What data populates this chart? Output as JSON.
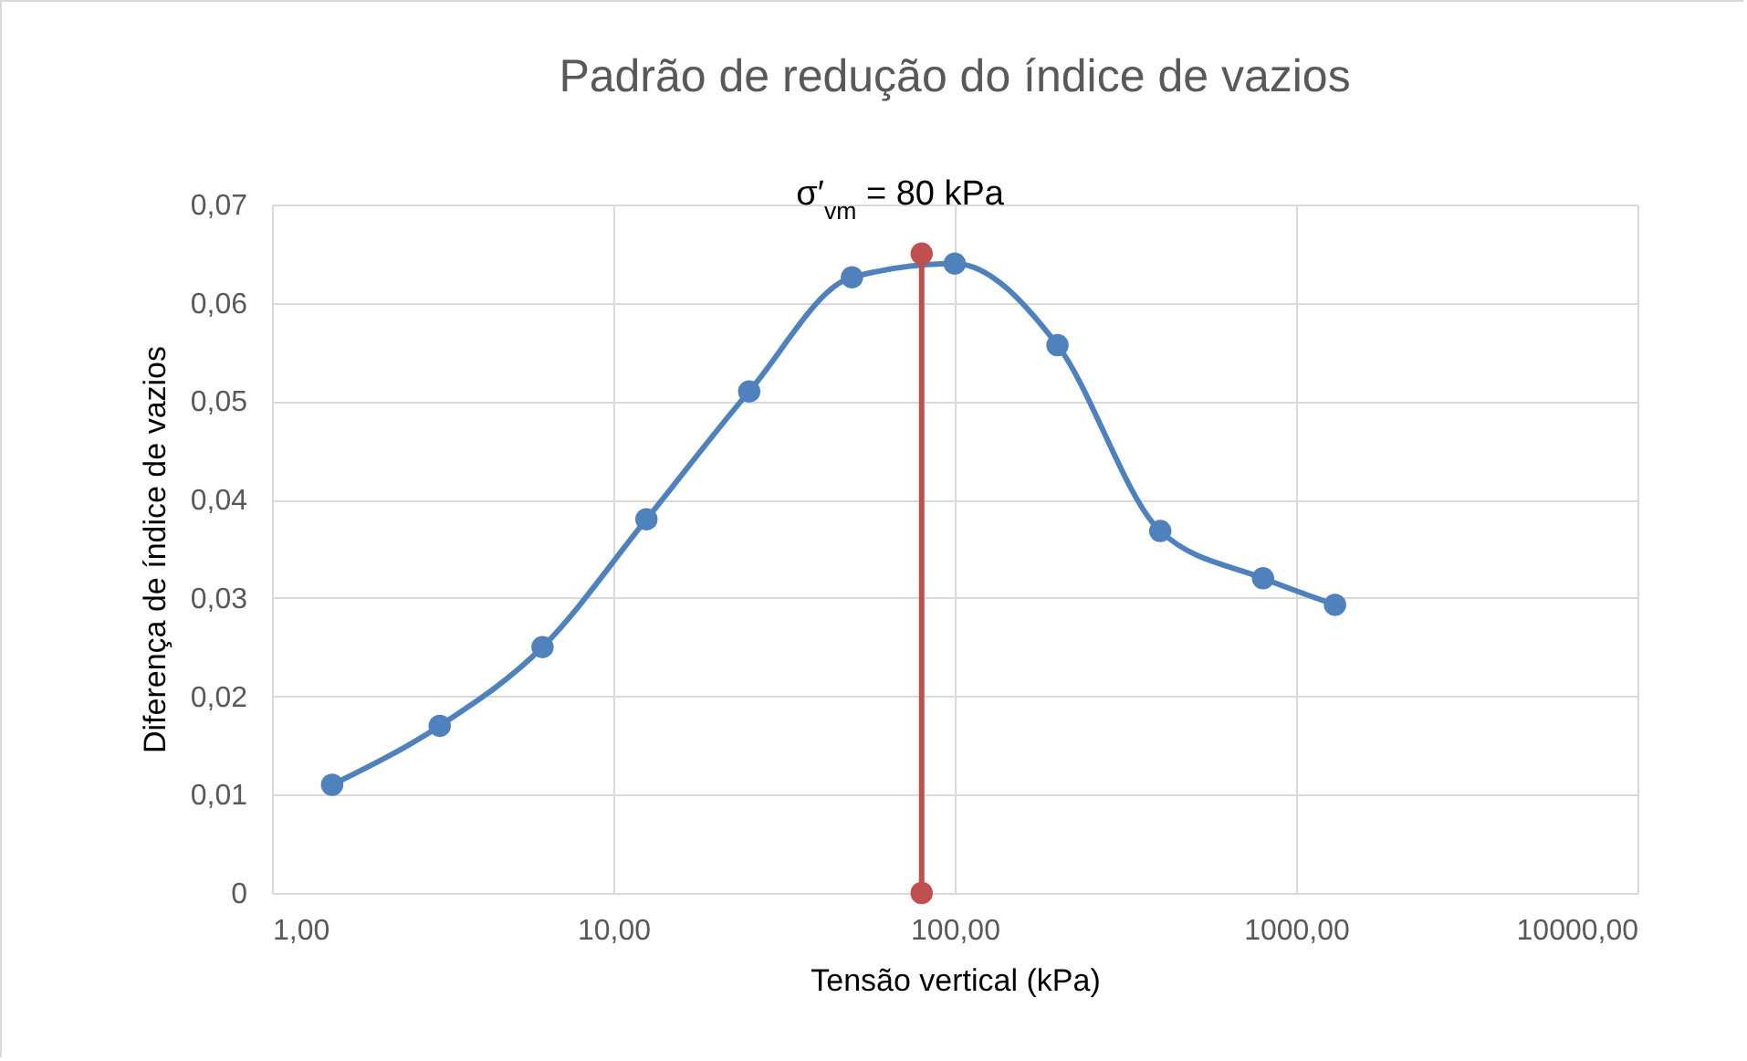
{
  "chart_data": {
    "type": "line",
    "title": "Padrão de redução do índice de vazios",
    "xlabel": "Tensão vertical (kPa)",
    "ylabel": "Diferença de índice de vazios",
    "log": "x",
    "xlim": [
      1,
      10000
    ],
    "ylim": [
      0,
      0.07
    ],
    "xticks": [
      {
        "value": 1,
        "label": "1,00"
      },
      {
        "value": 10,
        "label": "10,00"
      },
      {
        "value": 100,
        "label": "100,00"
      },
      {
        "value": 1000,
        "label": "1000,00"
      },
      {
        "value": 10000,
        "label": "10000,00"
      }
    ],
    "yticks": [
      0,
      {
        "value": 0.01,
        "label": "0,01"
      },
      {
        "value": 0.02,
        "label": "0,02"
      },
      {
        "value": 0.03,
        "label": "0,03"
      },
      {
        "value": 0.04,
        "label": "0,04"
      },
      {
        "value": 0.05,
        "label": "0,05"
      },
      {
        "value": 0.06,
        "label": "0,06"
      },
      {
        "value": 0.07,
        "label": "0,07"
      }
    ],
    "grid": true,
    "legend": false,
    "marker": "circle",
    "line_style": "solid",
    "series": [
      {
        "color": "#4f81bd",
        "x": [
          1.5,
          3.1,
          6.2,
          12.5,
          25,
          50,
          100,
          200,
          400,
          800,
          1300
        ],
        "values": [
          0.011,
          0.017,
          0.025,
          0.038,
          0.051,
          0.0626,
          0.064,
          0.0557,
          0.0368,
          0.032,
          0.0293
        ]
      },
      {
        "color": "#c0504d",
        "x": [
          80,
          80
        ],
        "values": [
          0.065,
          0
        ]
      }
    ],
    "annotations": [
      "σ′$_{vm}$ = 80 kPa"
    ]
  }
}
